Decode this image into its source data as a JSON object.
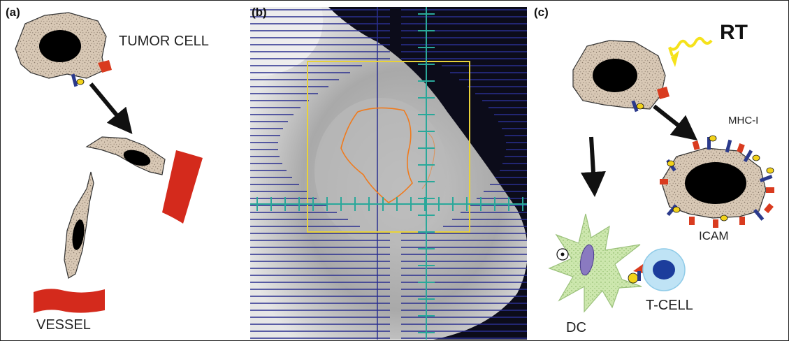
{
  "panels": {
    "a": {
      "label": "(a)",
      "tumor_cell_label": "TUMOR CELL",
      "vessel_label": "VESSEL"
    },
    "b": {
      "label": "(b)"
    },
    "c": {
      "label": "(c)",
      "rt_label": "RT",
      "mhc_label": "MHC-I",
      "icam_label": "ICAM",
      "dc_label": "DC",
      "tcell_label": "T-CELL"
    }
  },
  "colors": {
    "cell_fill": "#d9c9b6",
    "nucleus": "#000000",
    "vessel": "#d42a1c",
    "receptor_red": "#d93b1f",
    "receptor_blue": "#2b3a8c",
    "ligand_yellow": "#f2d21a",
    "rt_wave": "#f5e21b",
    "ct_grid_line": "#2a2f8f",
    "ct_crosshair": "#2aa89a",
    "roi_box": "#e8d23a",
    "tumor_contour": "#f07a1c",
    "dc_fill": "#c9e6a9",
    "tcell_outer": "#bfe3f5",
    "tcell_nucleus": "#1c3d9c"
  }
}
